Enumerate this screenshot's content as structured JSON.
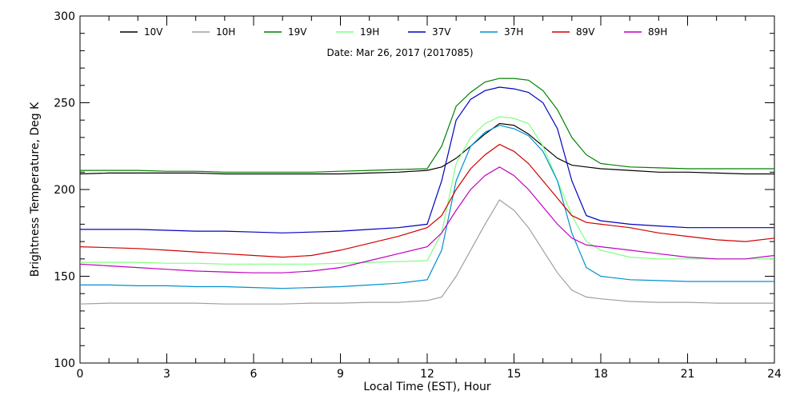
{
  "chart_data": {
    "type": "line",
    "title": "",
    "annotation": "Date: Mar 26, 2017 (2017085)",
    "xlabel": "Local Time (EST), Hour",
    "ylabel": "Brightness Temperature, Deg K",
    "xlim": [
      0,
      24
    ],
    "ylim": [
      100,
      300
    ],
    "xticks": [
      0,
      3,
      6,
      9,
      12,
      15,
      18,
      21,
      24
    ],
    "yticks": [
      100,
      150,
      200,
      250,
      300
    ],
    "grid": false,
    "legend_position": "top",
    "series": [
      {
        "name": "10V",
        "color": "#000000",
        "x": [
          0,
          1,
          2,
          3,
          4,
          5,
          6,
          7,
          8,
          9,
          10,
          11,
          12,
          12.5,
          13,
          13.5,
          14,
          14.5,
          15,
          15.5,
          16,
          16.5,
          17,
          17.5,
          18,
          19,
          20,
          21,
          22,
          23,
          24
        ],
        "y": [
          209,
          209.5,
          209.5,
          209.5,
          209.5,
          209,
          209,
          209,
          209,
          209,
          209.5,
          210,
          211,
          213,
          218,
          225,
          232,
          238,
          237,
          232,
          225,
          218,
          214,
          213,
          212,
          211,
          210,
          210,
          209.5,
          209,
          209
        ]
      },
      {
        "name": "10H",
        "color": "#a0a0a0",
        "x": [
          0,
          1,
          2,
          3,
          4,
          5,
          6,
          7,
          8,
          9,
          10,
          11,
          12,
          12.5,
          13,
          13.5,
          14,
          14.5,
          15,
          15.5,
          16,
          16.5,
          17,
          17.5,
          18,
          19,
          20,
          21,
          22,
          23,
          24
        ],
        "y": [
          134,
          134.5,
          134.5,
          134.5,
          134.5,
          134,
          134,
          134,
          134.5,
          134.5,
          135,
          135,
          136,
          138,
          150,
          165,
          180,
          194,
          188,
          178,
          165,
          152,
          142,
          138,
          137,
          135.5,
          135,
          135,
          134.5,
          134.5,
          134.5
        ]
      },
      {
        "name": "19V",
        "color": "#008000",
        "x": [
          0,
          1,
          2,
          3,
          4,
          5,
          6,
          7,
          8,
          9,
          10,
          11,
          12,
          12.5,
          13,
          13.5,
          14,
          14.5,
          15,
          15.5,
          16,
          16.5,
          17,
          17.5,
          18,
          19,
          20,
          21,
          22,
          23,
          24
        ],
        "y": [
          211,
          211,
          211,
          210.5,
          210.5,
          210,
          210,
          210,
          210,
          210.5,
          211,
          211.5,
          212,
          225,
          248,
          256,
          262,
          264,
          264,
          263,
          257,
          246,
          230,
          220,
          215,
          213,
          212.5,
          212,
          212,
          212,
          212
        ]
      },
      {
        "name": "19H",
        "color": "#80ff80",
        "x": [
          0,
          1,
          2,
          3,
          4,
          5,
          6,
          7,
          8,
          9,
          10,
          11,
          12,
          12.5,
          13,
          13.5,
          14,
          14.5,
          15,
          15.5,
          16,
          16.5,
          17,
          17.5,
          18,
          19,
          20,
          21,
          22,
          23,
          24
        ],
        "y": [
          158,
          158,
          158,
          157.5,
          157.5,
          157,
          157,
          157,
          157,
          157.5,
          158,
          158.5,
          159,
          175,
          215,
          230,
          238,
          242,
          241,
          238,
          225,
          205,
          185,
          170,
          165,
          161,
          160,
          160,
          160,
          160,
          160
        ]
      },
      {
        "name": "37V",
        "color": "#0000c0",
        "x": [
          0,
          1,
          2,
          3,
          4,
          5,
          6,
          7,
          8,
          9,
          10,
          11,
          12,
          12.5,
          13,
          13.5,
          14,
          14.5,
          15,
          15.5,
          16,
          16.5,
          17,
          17.5,
          18,
          19,
          20,
          21,
          22,
          23,
          24
        ],
        "y": [
          177,
          177,
          177,
          176.5,
          176,
          176,
          175.5,
          175,
          175.5,
          176,
          177,
          178,
          180,
          205,
          240,
          252,
          257,
          259,
          258,
          256,
          250,
          235,
          205,
          185,
          182,
          180,
          179,
          178,
          178,
          178,
          178
        ]
      },
      {
        "name": "37H",
        "color": "#0090d0",
        "x": [
          0,
          1,
          2,
          3,
          4,
          5,
          6,
          7,
          8,
          9,
          10,
          11,
          12,
          12.5,
          13,
          13.5,
          14,
          14.5,
          15,
          15.5,
          16,
          16.5,
          17,
          17.5,
          18,
          19,
          20,
          21,
          22,
          23,
          24
        ],
        "y": [
          145,
          145,
          144.5,
          144.5,
          144,
          144,
          143.5,
          143,
          143.5,
          144,
          145,
          146,
          148,
          165,
          205,
          225,
          233,
          237,
          235,
          231,
          222,
          205,
          175,
          155,
          150,
          148,
          147.5,
          147,
          147,
          147,
          147
        ]
      },
      {
        "name": "89V",
        "color": "#d00000",
        "x": [
          0,
          1,
          2,
          3,
          4,
          5,
          6,
          7,
          8,
          9,
          10,
          11,
          12,
          12.5,
          13,
          13.5,
          14,
          14.5,
          15,
          15.5,
          16,
          16.5,
          17,
          17.5,
          18,
          19,
          20,
          21,
          22,
          23,
          24
        ],
        "y": [
          167,
          166.5,
          166,
          165,
          164,
          163,
          162,
          161,
          162,
          165,
          169,
          173,
          178,
          185,
          200,
          212,
          220,
          226,
          222,
          215,
          205,
          195,
          185,
          181,
          180,
          178,
          175,
          173,
          171,
          170,
          172
        ]
      },
      {
        "name": "89H",
        "color": "#c000c0",
        "x": [
          0,
          1,
          2,
          3,
          4,
          5,
          6,
          7,
          8,
          9,
          10,
          11,
          12,
          12.5,
          13,
          13.5,
          14,
          14.5,
          15,
          15.5,
          16,
          16.5,
          17,
          17.5,
          18,
          19,
          20,
          21,
          22,
          23,
          24
        ],
        "y": [
          157,
          156,
          155,
          154,
          153,
          152.5,
          152,
          152,
          153,
          155,
          159,
          163,
          167,
          175,
          188,
          200,
          208,
          213,
          208,
          200,
          190,
          180,
          172,
          168,
          167,
          165,
          163,
          161,
          160,
          160,
          162
        ]
      }
    ]
  }
}
